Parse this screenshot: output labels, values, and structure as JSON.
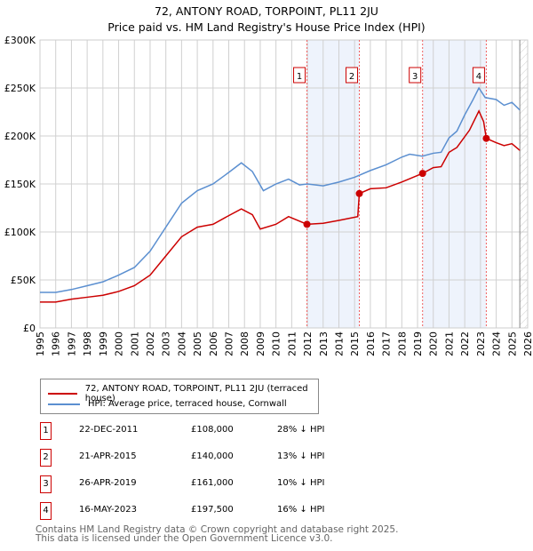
{
  "header": {
    "line1": "72, ANTONY ROAD, TORPOINT, PL11 2JU",
    "line2": "Price paid vs. HM Land Registry's House Price Index (HPI)"
  },
  "chart_data": {
    "type": "line",
    "title": "72, ANTONY ROAD, TORPOINT, PL11 2JU — Price paid vs. HM Land Registry's House Price Index (HPI)",
    "xlim": [
      1995,
      2026
    ],
    "ylim": [
      0,
      300000
    ],
    "x_ticks": [
      "1995",
      "1996",
      "1997",
      "1998",
      "1999",
      "2000",
      "2001",
      "2002",
      "2003",
      "2004",
      "2005",
      "2006",
      "2007",
      "2008",
      "2009",
      "2010",
      "2011",
      "2012",
      "2013",
      "2014",
      "2015",
      "2016",
      "2017",
      "2018",
      "2019",
      "2020",
      "2021",
      "2022",
      "2023",
      "2024",
      "2025",
      "2026"
    ],
    "y_ticks": [
      {
        "v": 0,
        "label": "£0"
      },
      {
        "v": 50000,
        "label": "£50K"
      },
      {
        "v": 100000,
        "label": "£100K"
      },
      {
        "v": 150000,
        "label": "£150K"
      },
      {
        "v": 200000,
        "label": "£200K"
      },
      {
        "v": 250000,
        "label": "£250K"
      },
      {
        "v": 300000,
        "label": "£300K"
      }
    ],
    "grid": true,
    "series": [
      {
        "name": "72, ANTONY ROAD, TORPOINT, PL11 2JU (terraced house)",
        "color": "#cc0000",
        "points": [
          [
            1995,
            27000
          ],
          [
            1996,
            27000
          ],
          [
            1997,
            30000
          ],
          [
            1998,
            32000
          ],
          [
            1999,
            34000
          ],
          [
            2000,
            38000
          ],
          [
            2001,
            44000
          ],
          [
            2002,
            55000
          ],
          [
            2003,
            75000
          ],
          [
            2004,
            95000
          ],
          [
            2005,
            105000
          ],
          [
            2006,
            108000
          ],
          [
            2007,
            117000
          ],
          [
            2007.8,
            124000
          ],
          [
            2008.5,
            118000
          ],
          [
            2009,
            103000
          ],
          [
            2010,
            108000
          ],
          [
            2010.8,
            116000
          ],
          [
            2011.97,
            108000
          ],
          [
            2013,
            109000
          ],
          [
            2014,
            112000
          ],
          [
            2015.2,
            116000
          ],
          [
            2015.3,
            140000
          ],
          [
            2016,
            145000
          ],
          [
            2017,
            146000
          ],
          [
            2018,
            152000
          ],
          [
            2019.32,
            161000
          ],
          [
            2020,
            167000
          ],
          [
            2020.5,
            168000
          ],
          [
            2021,
            183000
          ],
          [
            2021.5,
            188000
          ],
          [
            2022.3,
            206000
          ],
          [
            2022.9,
            226000
          ],
          [
            2023.2,
            215000
          ],
          [
            2023.37,
            197500
          ],
          [
            2024,
            193000
          ],
          [
            2024.5,
            190000
          ],
          [
            2025,
            192000
          ],
          [
            2025.5,
            185000
          ]
        ]
      },
      {
        "name": "HPI: Average price, terraced house, Cornwall",
        "color": "#5b8fd0",
        "points": [
          [
            1995,
            37000
          ],
          [
            1996,
            37000
          ],
          [
            1997,
            40000
          ],
          [
            1998,
            44000
          ],
          [
            1999,
            48000
          ],
          [
            2000,
            55000
          ],
          [
            2001,
            63000
          ],
          [
            2002,
            80000
          ],
          [
            2003,
            105000
          ],
          [
            2004,
            130000
          ],
          [
            2005,
            143000
          ],
          [
            2006,
            150000
          ],
          [
            2007,
            162000
          ],
          [
            2007.8,
            172000
          ],
          [
            2008.5,
            163000
          ],
          [
            2009.2,
            143000
          ],
          [
            2010,
            150000
          ],
          [
            2010.8,
            155000
          ],
          [
            2011.5,
            149000
          ],
          [
            2012,
            150000
          ],
          [
            2013,
            148000
          ],
          [
            2014,
            152000
          ],
          [
            2015,
            157000
          ],
          [
            2016,
            164000
          ],
          [
            2017,
            170000
          ],
          [
            2018,
            178000
          ],
          [
            2018.5,
            181000
          ],
          [
            2019.3,
            179000
          ],
          [
            2020,
            182000
          ],
          [
            2020.5,
            183000
          ],
          [
            2021,
            198000
          ],
          [
            2021.5,
            205000
          ],
          [
            2022,
            222000
          ],
          [
            2022.5,
            237000
          ],
          [
            2022.9,
            250000
          ],
          [
            2023.3,
            240000
          ],
          [
            2024,
            238000
          ],
          [
            2024.5,
            232000
          ],
          [
            2025,
            235000
          ],
          [
            2025.5,
            227000
          ]
        ]
      }
    ],
    "sales": [
      {
        "n": "1",
        "x": 2011.97,
        "y": 108000
      },
      {
        "n": "2",
        "x": 2015.3,
        "y": 140000
      },
      {
        "n": "3",
        "x": 2019.32,
        "y": 161000
      },
      {
        "n": "4",
        "x": 2023.37,
        "y": 197500
      }
    ],
    "shaded": [
      [
        2011.97,
        2015.3
      ],
      [
        2019.32,
        2023.37
      ]
    ],
    "hatched_from": 2025.5
  },
  "legend": {
    "items": [
      {
        "label": "72, ANTONY ROAD, TORPOINT, PL11 2JU (terraced house)",
        "color": "#cc0000"
      },
      {
        "label": "HPI: Average price, terraced house, Cornwall",
        "color": "#5b8fd0"
      }
    ]
  },
  "table": [
    {
      "n": "1",
      "date": "22-DEC-2011",
      "price": "£108,000",
      "diff": "28% ↓ HPI"
    },
    {
      "n": "2",
      "date": "21-APR-2015",
      "price": "£140,000",
      "diff": "13% ↓ HPI"
    },
    {
      "n": "3",
      "date": "26-APR-2019",
      "price": "£161,000",
      "diff": "10% ↓ HPI"
    },
    {
      "n": "4",
      "date": "16-MAY-2023",
      "price": "£197,500",
      "diff": "16% ↓ HPI"
    }
  ],
  "footer": {
    "line1": "Contains HM Land Registry data © Crown copyright and database right 2025.",
    "line2": "This data is licensed under the Open Government Licence v3.0."
  }
}
